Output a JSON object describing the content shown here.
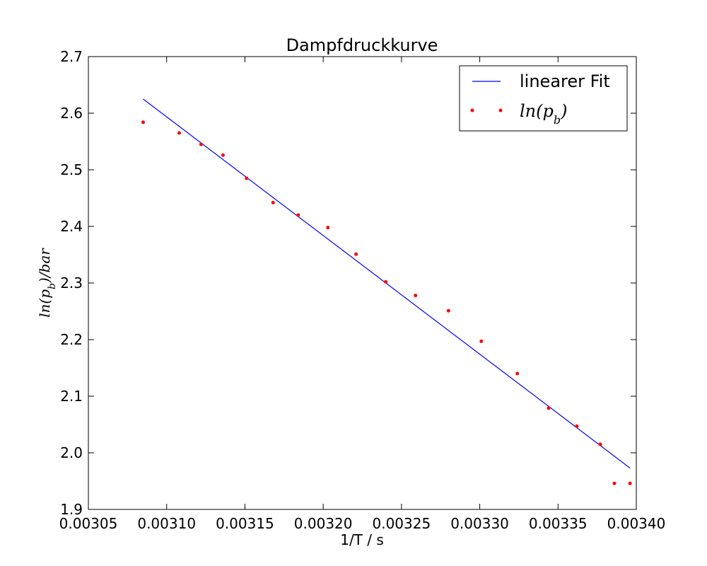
{
  "chart_data": {
    "type": "scatter",
    "title": "Dampfdruckkurve",
    "xlabel": "1/T / s",
    "ylabel": "ln(p_b)/bar",
    "xlim": [
      0.00305,
      0.0034
    ],
    "ylim": [
      1.9,
      2.7
    ],
    "xticks": [
      "0.00305",
      "0.00310",
      "0.00315",
      "0.00320",
      "0.00325",
      "0.00330",
      "0.00335",
      "0.00340"
    ],
    "yticks": [
      "1.9",
      "2.0",
      "2.1",
      "2.2",
      "2.3",
      "2.4",
      "2.5",
      "2.6",
      "2.7"
    ],
    "grid": false,
    "legend_position": "top-right",
    "series": [
      {
        "name": "linearer Fit",
        "kind": "line",
        "color": "#0000ff",
        "x": [
          0.003085,
          0.003396
        ],
        "y": [
          2.625,
          1.973
        ]
      },
      {
        "name": "ln(p_b)",
        "kind": "points",
        "color": "#ff0000",
        "x": [
          0.003085,
          0.003108,
          0.003122,
          0.003136,
          0.003151,
          0.003168,
          0.003184,
          0.003203,
          0.003221,
          0.00324,
          0.003259,
          0.00328,
          0.003301,
          0.003324,
          0.003344,
          0.003362,
          0.003377,
          0.003386,
          0.003396
        ],
        "y": [
          2.584,
          2.565,
          2.545,
          2.526,
          2.485,
          2.442,
          2.42,
          2.398,
          2.351,
          2.302,
          2.278,
          2.251,
          2.197,
          2.14,
          2.079,
          2.047,
          2.015,
          1.946,
          1.946
        ]
      }
    ]
  }
}
